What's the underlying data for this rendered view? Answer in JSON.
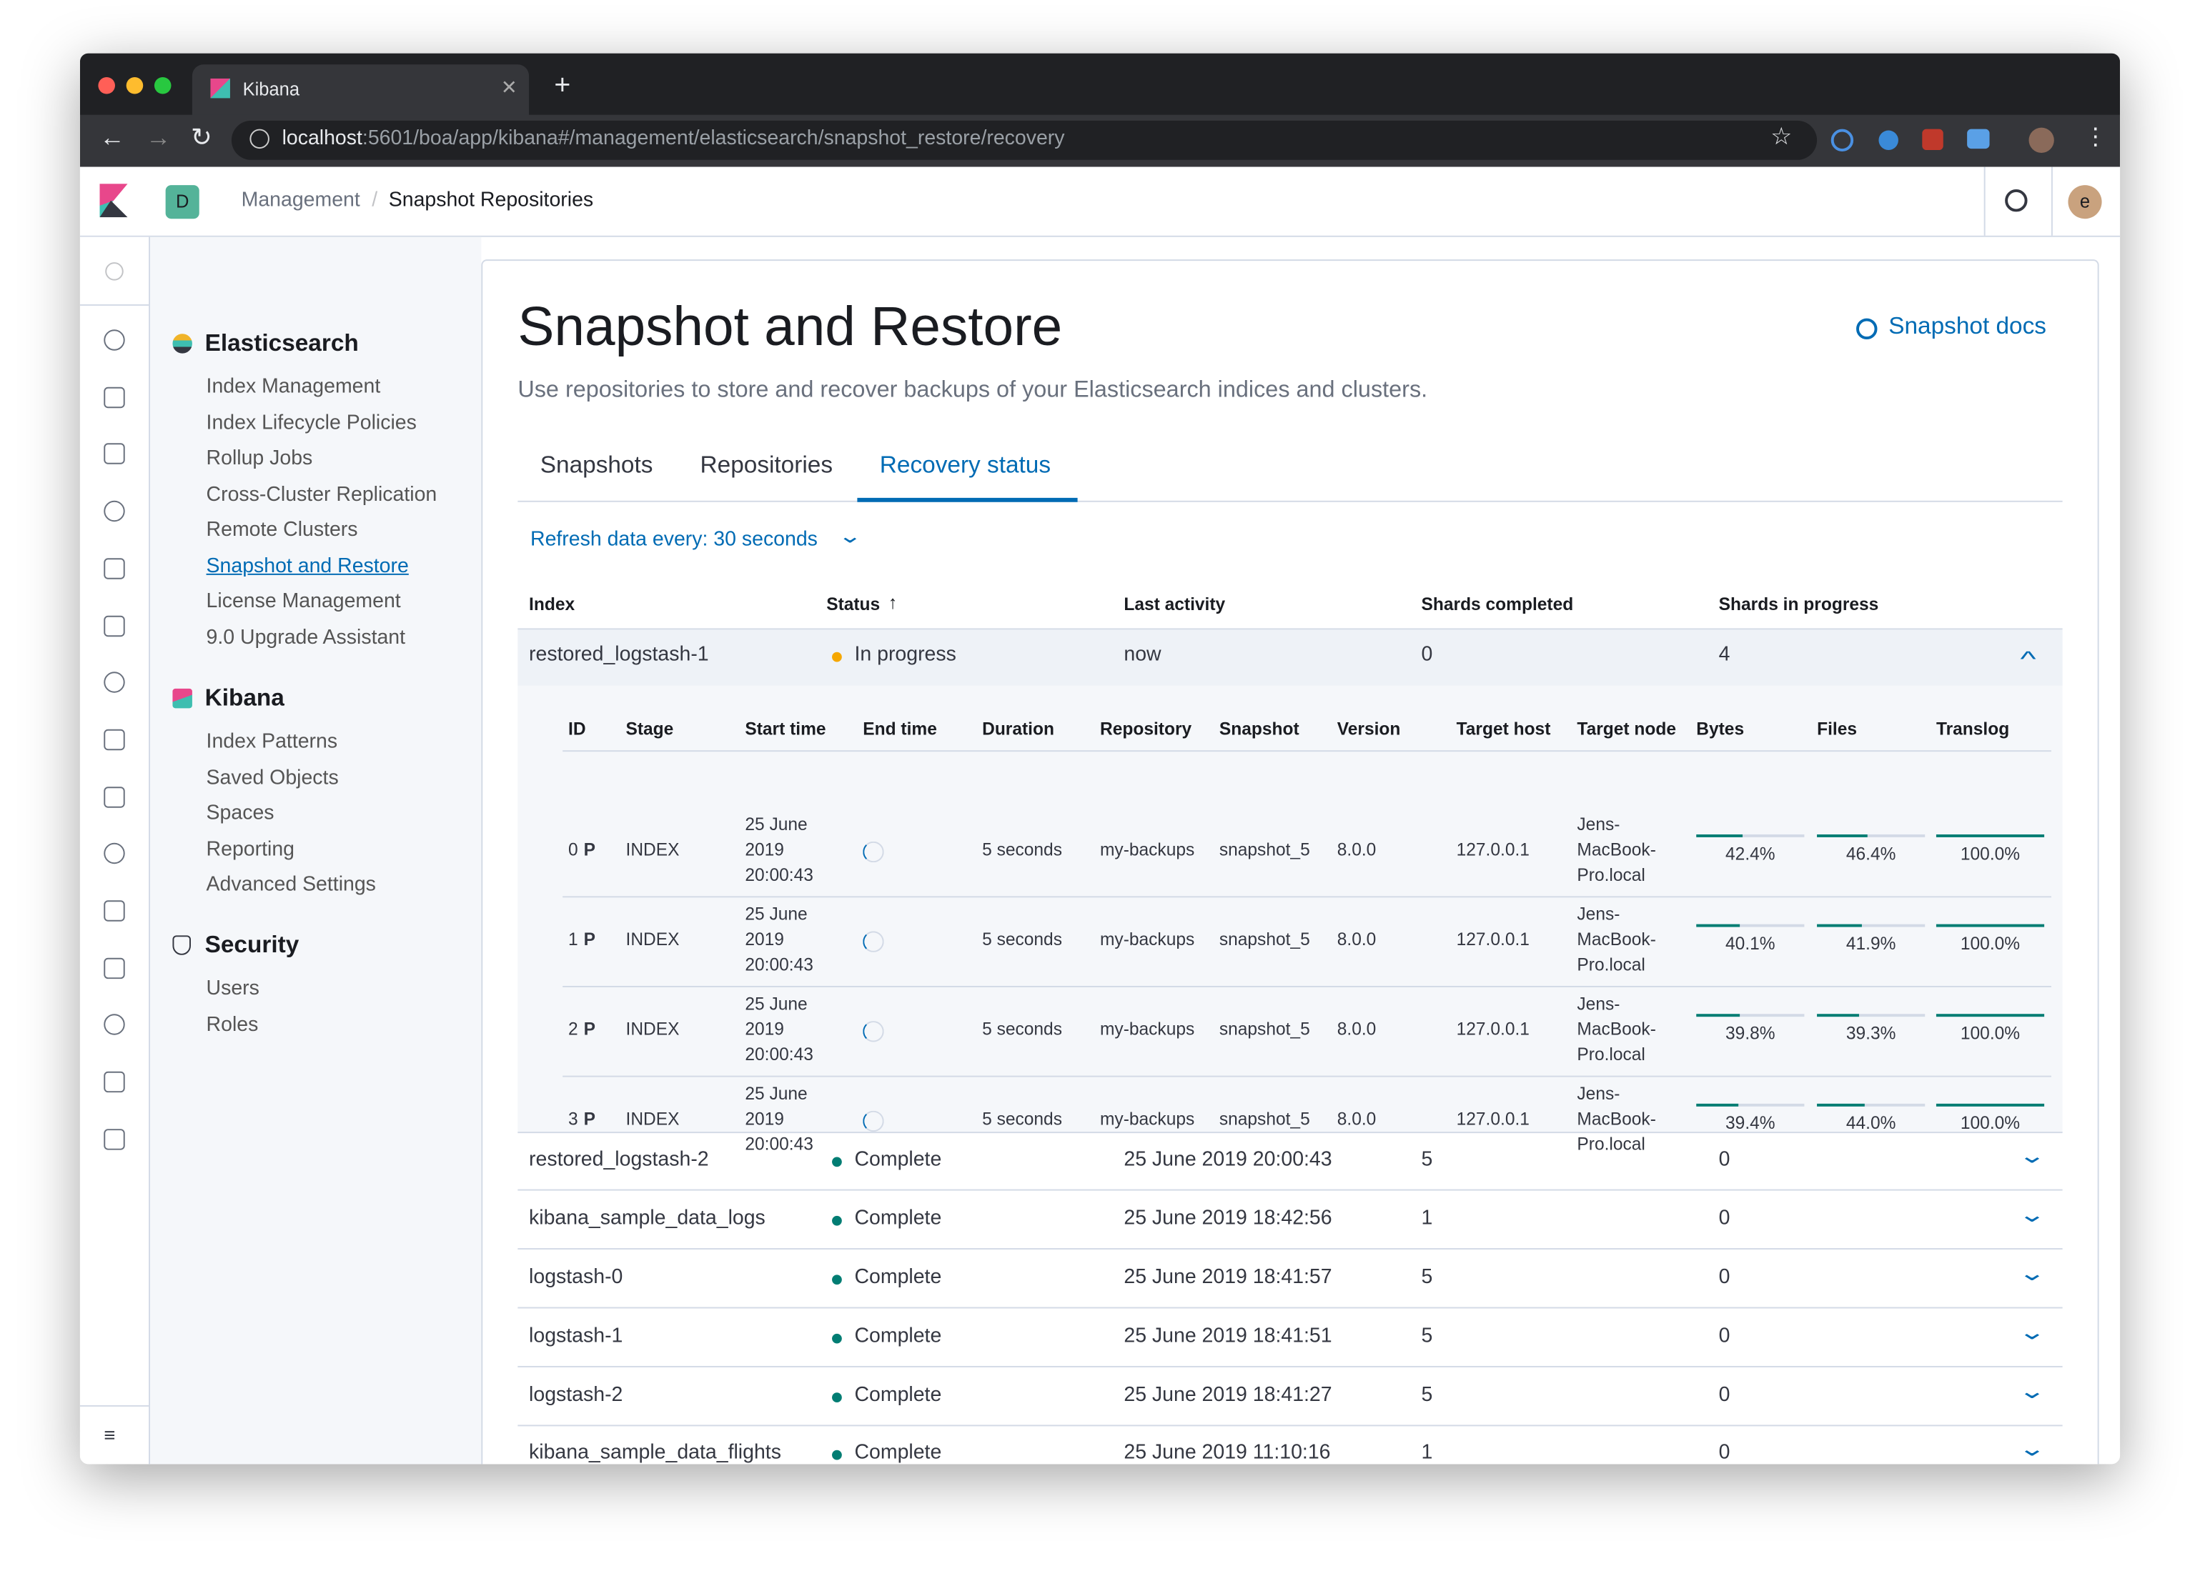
{
  "browser": {
    "tab_title": "Kibana",
    "url_host": "localhost",
    "url_path": ":5601/boa/app/kibana#/management/elasticsearch/snapshot_restore/recovery"
  },
  "header": {
    "space": "D",
    "breadcrumbs": [
      "Management",
      "Snapshot Repositories"
    ],
    "avatar": "e"
  },
  "sidebar": {
    "sections": [
      {
        "title": "Elasticsearch",
        "items": [
          "Index Management",
          "Index Lifecycle Policies",
          "Rollup Jobs",
          "Cross-Cluster Replication",
          "Remote Clusters",
          "Snapshot and Restore",
          "License Management",
          "9.0 Upgrade Assistant"
        ]
      },
      {
        "title": "Kibana",
        "items": [
          "Index Patterns",
          "Saved Objects",
          "Spaces",
          "Reporting",
          "Advanced Settings"
        ]
      },
      {
        "title": "Security",
        "items": [
          "Users",
          "Roles"
        ]
      }
    ]
  },
  "page": {
    "title": "Snapshot and Restore",
    "description": "Use repositories to store and recover backups of your Elasticsearch indices and clusters.",
    "docs_link": "Snapshot docs",
    "tabs": [
      "Snapshots",
      "Repositories",
      "Recovery status"
    ],
    "refresh": "Refresh data every: 30 seconds"
  },
  "table": {
    "columns": [
      "Index",
      "Status",
      "Last activity",
      "Shards completed",
      "Shards in progress"
    ],
    "rows": [
      {
        "index": "restored_logstash-1",
        "status": "In progress",
        "status_color": "#f5a700",
        "last_activity": "now",
        "shards_completed": 0,
        "shards_in_progress": 4
      },
      {
        "index": "restored_logstash-2",
        "status": "Complete",
        "status_color": "#017d73",
        "last_activity": "25 June 2019 20:00:43",
        "shards_completed": 5,
        "shards_in_progress": 0
      },
      {
        "index": "kibana_sample_data_logs",
        "status": "Complete",
        "status_color": "#017d73",
        "last_activity": "25 June 2019 18:42:56",
        "shards_completed": 1,
        "shards_in_progress": 0
      },
      {
        "index": "logstash-0",
        "status": "Complete",
        "status_color": "#017d73",
        "last_activity": "25 June 2019 18:41:57",
        "shards_completed": 5,
        "shards_in_progress": 0
      },
      {
        "index": "logstash-1",
        "status": "Complete",
        "status_color": "#017d73",
        "last_activity": "25 June 2019 18:41:51",
        "shards_completed": 5,
        "shards_in_progress": 0
      },
      {
        "index": "logstash-2",
        "status": "Complete",
        "status_color": "#017d73",
        "last_activity": "25 June 2019 18:41:27",
        "shards_completed": 5,
        "shards_in_progress": 0
      },
      {
        "index": "kibana_sample_data_flights",
        "status": "Complete",
        "status_color": "#017d73",
        "last_activity": "25 June 2019 11:10:16",
        "shards_completed": 1,
        "shards_in_progress": 0
      }
    ]
  },
  "detail": {
    "columns": [
      "ID",
      "Stage",
      "Start time",
      "End time",
      "Duration",
      "Repository",
      "Snapshot",
      "Version",
      "Target host",
      "Target node",
      "Bytes",
      "Files",
      "Translog"
    ],
    "rows": [
      {
        "id": 0,
        "primary": "P",
        "stage": "INDEX",
        "start_time": "25 June 2019 20:00:43",
        "duration": "5 seconds",
        "repository": "my-backups",
        "snapshot": "snapshot_5",
        "version": "8.0.0",
        "target_host": "127.0.0.1",
        "target_node": "Jens-MacBook-Pro.local",
        "bytes": {
          "value": 42.4,
          "label": "42.4%"
        },
        "files": {
          "value": 46.4,
          "label": "46.4%"
        },
        "translog": {
          "value": 100,
          "label": "100.0%"
        }
      },
      {
        "id": 1,
        "primary": "P",
        "stage": "INDEX",
        "start_time": "25 June 2019 20:00:43",
        "duration": "5 seconds",
        "repository": "my-backups",
        "snapshot": "snapshot_5",
        "version": "8.0.0",
        "target_host": "127.0.0.1",
        "target_node": "Jens-MacBook-Pro.local",
        "bytes": {
          "value": 40.1,
          "label": "40.1%"
        },
        "files": {
          "value": 41.9,
          "label": "41.9%"
        },
        "translog": {
          "value": 100,
          "label": "100.0%"
        }
      },
      {
        "id": 2,
        "primary": "P",
        "stage": "INDEX",
        "start_time": "25 June 2019 20:00:43",
        "duration": "5 seconds",
        "repository": "my-backups",
        "snapshot": "snapshot_5",
        "version": "8.0.0",
        "target_host": "127.0.0.1",
        "target_node": "Jens-MacBook-Pro.local",
        "bytes": {
          "value": 39.8,
          "label": "39.8%"
        },
        "files": {
          "value": 39.3,
          "label": "39.3%"
        },
        "translog": {
          "value": 100,
          "label": "100.0%"
        }
      },
      {
        "id": 3,
        "primary": "P",
        "stage": "INDEX",
        "start_time": "25 June 2019 20:00:43",
        "duration": "5 seconds",
        "repository": "my-backups",
        "snapshot": "snapshot_5",
        "version": "8.0.0",
        "target_host": "127.0.0.1",
        "target_node": "Jens-MacBook-Pro.local",
        "bytes": {
          "value": 39.4,
          "label": "39.4%"
        },
        "files": {
          "value": 44.0,
          "label": "44.0%"
        },
        "translog": {
          "value": 100,
          "label": "100.0%"
        }
      }
    ]
  }
}
